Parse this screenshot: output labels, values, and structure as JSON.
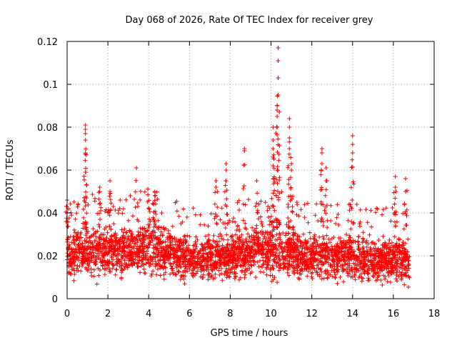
{
  "chart_data": {
    "type": "scatter",
    "title": "Day 068 of 2026, Rate Of TEC Index for receiver grey",
    "xlabel": "GPS time / hours",
    "ylabel": "ROTI / TECUs",
    "xlim": [
      0,
      18
    ],
    "ylim": [
      0,
      0.12
    ],
    "x_ticks": [
      0,
      2,
      4,
      6,
      8,
      10,
      12,
      14,
      16,
      18
    ],
    "x_tick_labels": [
      "0",
      "2",
      "4",
      "6",
      "8",
      "10",
      "12",
      "14",
      "16",
      "18"
    ],
    "y_ticks": [
      0,
      0.02,
      0.04,
      0.06,
      0.08,
      0.1,
      0.12
    ],
    "y_tick_labels": [
      "0",
      "0.02",
      "0.04",
      "0.06",
      "0.08",
      "0.1",
      "0.12"
    ],
    "grid": true,
    "marker": "+",
    "color": "#ff0000",
    "series": [
      {
        "name": "ROTI",
        "description": "dense band of values mostly between 0.005 and 0.04 TECU/s from 0 to about 16.8 hours, with spikes",
        "x_range": [
          0,
          16.8
        ],
        "band": [
          {
            "x": 0.0,
            "low": 0.009,
            "high": 0.033
          },
          {
            "x": 1.0,
            "low": 0.007,
            "high": 0.036
          },
          {
            "x": 2.0,
            "low": 0.005,
            "high": 0.04
          },
          {
            "x": 3.0,
            "low": 0.008,
            "high": 0.038
          },
          {
            "x": 4.0,
            "low": 0.008,
            "high": 0.04
          },
          {
            "x": 5.0,
            "low": 0.008,
            "high": 0.036
          },
          {
            "x": 6.0,
            "low": 0.007,
            "high": 0.03
          },
          {
            "x": 7.0,
            "low": 0.007,
            "high": 0.032
          },
          {
            "x": 8.0,
            "low": 0.006,
            "high": 0.035
          },
          {
            "x": 9.0,
            "low": 0.007,
            "high": 0.036
          },
          {
            "x": 10.0,
            "low": 0.007,
            "high": 0.04
          },
          {
            "x": 11.0,
            "low": 0.007,
            "high": 0.036
          },
          {
            "x": 12.0,
            "low": 0.006,
            "high": 0.033
          },
          {
            "x": 13.0,
            "low": 0.006,
            "high": 0.032
          },
          {
            "x": 14.0,
            "low": 0.005,
            "high": 0.035
          },
          {
            "x": 15.0,
            "low": 0.006,
            "high": 0.03
          },
          {
            "x": 16.0,
            "low": 0.005,
            "high": 0.033
          },
          {
            "x": 16.8,
            "low": 0.004,
            "high": 0.03
          }
        ],
        "spikes": [
          {
            "x": 0.0,
            "values": [
              0.04,
              0.046
            ]
          },
          {
            "x": 0.9,
            "values": [
              0.059,
              0.068,
              0.074,
              0.077,
              0.079,
              0.081
            ]
          },
          {
            "x": 1.6,
            "values": [
              0.05,
              0.052
            ]
          },
          {
            "x": 2.1,
            "values": [
              0.05,
              0.055
            ]
          },
          {
            "x": 3.4,
            "values": [
              0.061
            ]
          },
          {
            "x": 4.3,
            "values": [
              0.048,
              0.05
            ]
          },
          {
            "x": 7.3,
            "values": [
              0.052,
              0.055
            ]
          },
          {
            "x": 7.8,
            "values": [
              0.055,
              0.06,
              0.063
            ]
          },
          {
            "x": 8.7,
            "values": [
              0.069,
              0.07
            ]
          },
          {
            "x": 9.3,
            "values": [
              0.055
            ]
          },
          {
            "x": 10.1,
            "values": [
              0.062,
              0.066,
              0.07,
              0.074,
              0.08
            ]
          },
          {
            "x": 10.3,
            "values": [
              0.08,
              0.085,
              0.088,
              0.09
            ]
          },
          {
            "x": 10.35,
            "values": [
              0.095,
              0.103,
              0.111,
              0.117
            ]
          },
          {
            "x": 10.9,
            "values": [
              0.07,
              0.075,
              0.08,
              0.084
            ]
          },
          {
            "x": 11.0,
            "values": [
              0.06,
              0.063
            ]
          },
          {
            "x": 12.5,
            "values": [
              0.063,
              0.068,
              0.07
            ]
          },
          {
            "x": 12.7,
            "values": [
              0.055,
              0.061
            ]
          },
          {
            "x": 14.0,
            "values": [
              0.068,
              0.072,
              0.076
            ]
          },
          {
            "x": 16.1,
            "values": [
              0.052,
              0.057
            ]
          },
          {
            "x": 16.6,
            "values": [
              0.05,
              0.056
            ]
          }
        ]
      }
    ]
  }
}
